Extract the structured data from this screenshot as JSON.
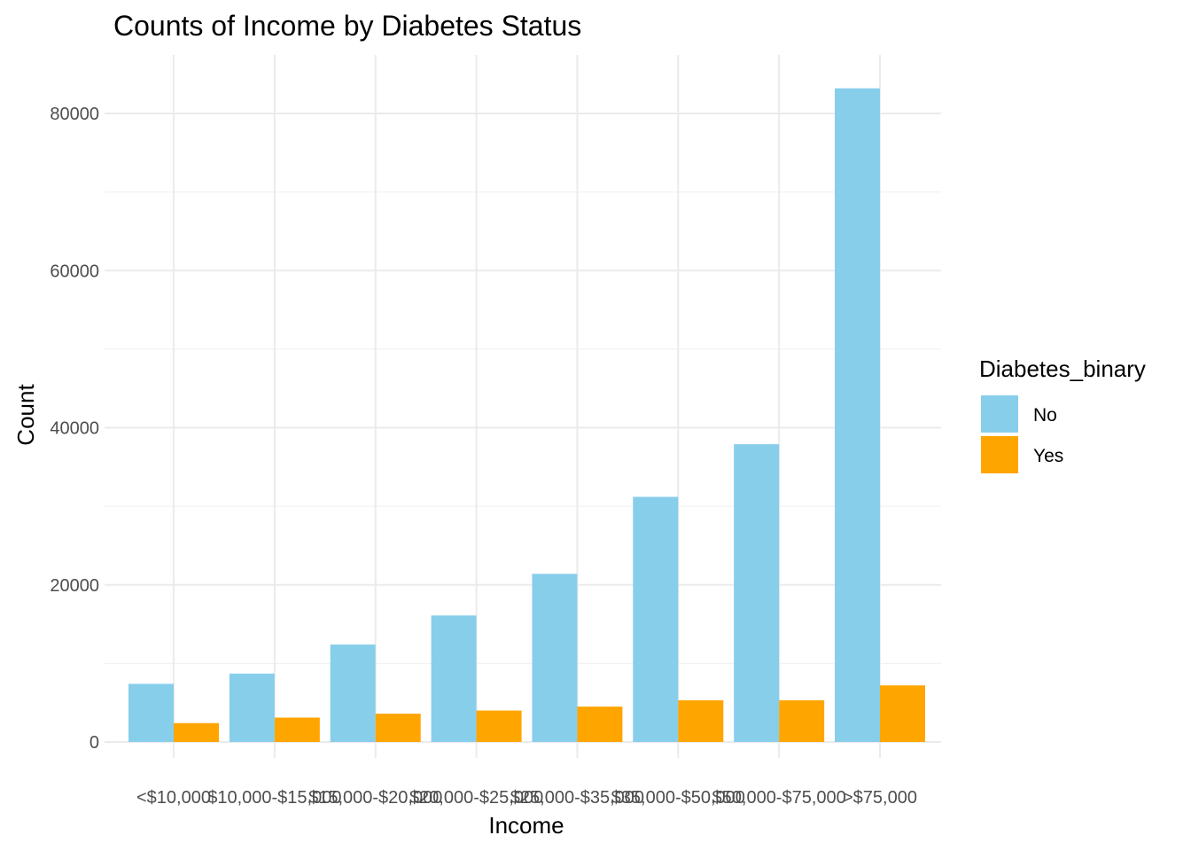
{
  "chart_data": {
    "type": "bar",
    "title": "Counts of Income by Diabetes Status",
    "xlabel": "Income",
    "ylabel": "Count",
    "categories": [
      "<$10,000",
      "$10,000-$15,000",
      "$15,000-$20,000",
      "$20,000-$25,000",
      "$25,000-$35,000",
      "$35,000-$50,000",
      "$50,000-$75,000",
      ">$75,000"
    ],
    "series": [
      {
        "name": "No",
        "color": "#87CEEB",
        "values": [
          7400,
          8700,
          12400,
          16100,
          21400,
          31200,
          37900,
          83200
        ]
      },
      {
        "name": "Yes",
        "color": "#FFA500",
        "values": [
          2400,
          3100,
          3600,
          4000,
          4500,
          5300,
          5300,
          7200
        ]
      }
    ],
    "ylim": [
      0,
      87500
    ],
    "yticks": [
      0,
      20000,
      40000,
      60000,
      80000
    ],
    "ytick_labels": [
      "0",
      "20000",
      "40000",
      "60000",
      "80000"
    ],
    "grid": true,
    "legend": {
      "title": "Diabetes_binary",
      "placement": "right"
    }
  }
}
